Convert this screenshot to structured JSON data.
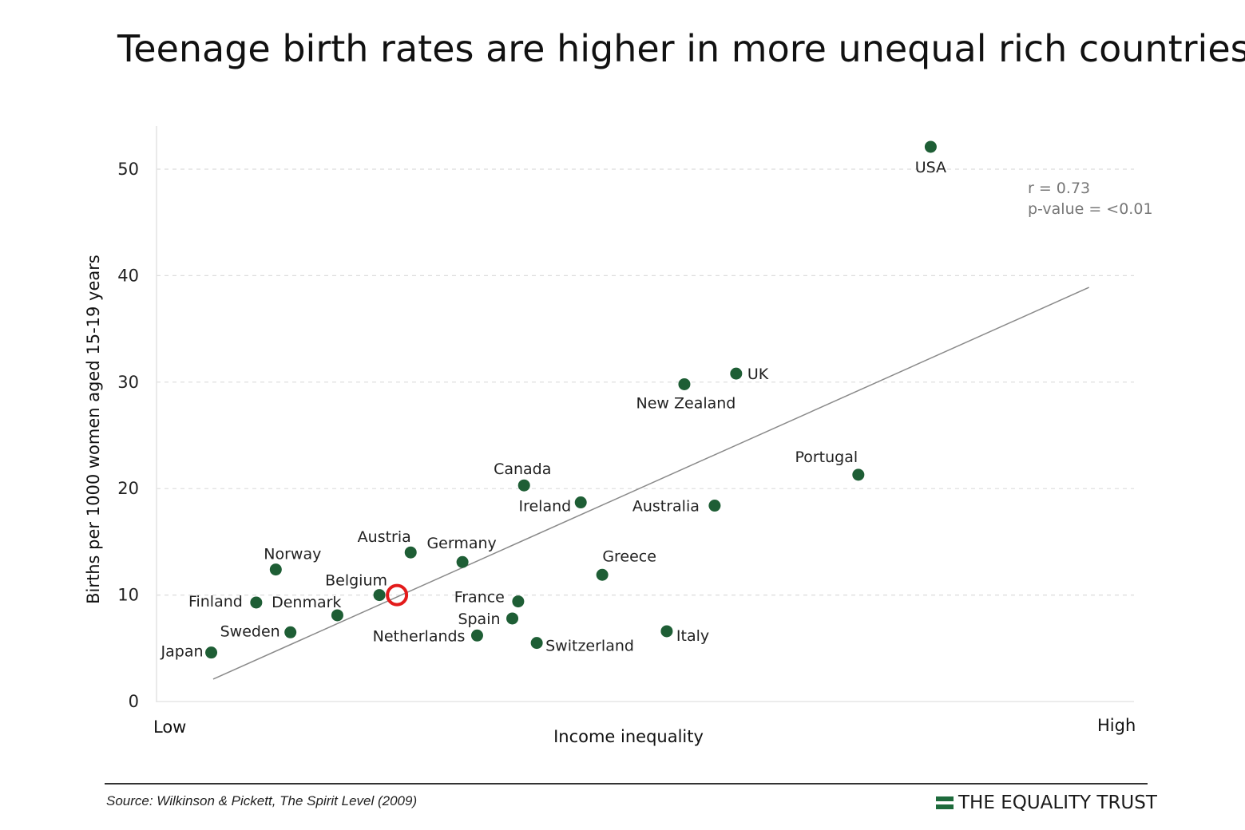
{
  "title": "Teenage birth rates are higher in more unequal rich countries",
  "chart_data": {
    "type": "scatter",
    "xlabel": "Income inequality",
    "x_low_label": "Low",
    "x_high_label": "High",
    "ylabel": "Births per 1000 women aged 15-19 years",
    "ylim": [
      0,
      50
    ],
    "yticks": [
      0,
      10,
      20,
      30,
      40,
      50
    ],
    "xlim": [
      0,
      100
    ],
    "grid": "horizontal dashed",
    "points": [
      {
        "name": "USA",
        "x": 79.2,
        "y": 52.1
      },
      {
        "name": "UK",
        "x": 59.3,
        "y": 30.8
      },
      {
        "name": "New Zealand",
        "x": 54.0,
        "y": 29.8
      },
      {
        "name": "Portugal",
        "x": 71.8,
        "y": 21.3
      },
      {
        "name": "Canada",
        "x": 37.6,
        "y": 20.3
      },
      {
        "name": "Ireland",
        "x": 43.4,
        "y": 18.7
      },
      {
        "name": "Australia",
        "x": 57.1,
        "y": 18.4
      },
      {
        "name": "Austria",
        "x": 26.0,
        "y": 14.0
      },
      {
        "name": "Germany",
        "x": 31.3,
        "y": 13.1
      },
      {
        "name": "Norway",
        "x": 12.2,
        "y": 12.4
      },
      {
        "name": "Greece",
        "x": 45.6,
        "y": 11.9
      },
      {
        "name": "Belgium",
        "x": 22.8,
        "y": 10.0
      },
      {
        "name": "Finland",
        "x": 10.2,
        "y": 9.3
      },
      {
        "name": "France",
        "x": 37.0,
        "y": 9.4
      },
      {
        "name": "Denmark",
        "x": 18.5,
        "y": 8.1
      },
      {
        "name": "Spain",
        "x": 36.4,
        "y": 7.8
      },
      {
        "name": "Sweden",
        "x": 13.7,
        "y": 6.5
      },
      {
        "name": "Italy",
        "x": 52.2,
        "y": 6.6
      },
      {
        "name": "Netherlands",
        "x": 32.8,
        "y": 6.2
      },
      {
        "name": "Switzerland",
        "x": 38.9,
        "y": 5.5
      },
      {
        "name": "Japan",
        "x": 5.6,
        "y": 4.6
      }
    ],
    "highlight": {
      "x": 24.6,
      "y": 10.0,
      "color": "#e31b1b"
    },
    "trendline": {
      "x": [
        5.8,
        95.4
      ],
      "y": [
        2.1,
        38.9
      ]
    },
    "annotation": {
      "r": "r = 0.73",
      "p": "p-value = <0.01"
    },
    "point_color": "#1e5e35"
  },
  "footer": {
    "source": "Source: Wilkinson & Pickett, The Spirit Level (2009)",
    "brand": "THE EQUALITY TRUST",
    "brand_color": "#1e6b3c"
  }
}
